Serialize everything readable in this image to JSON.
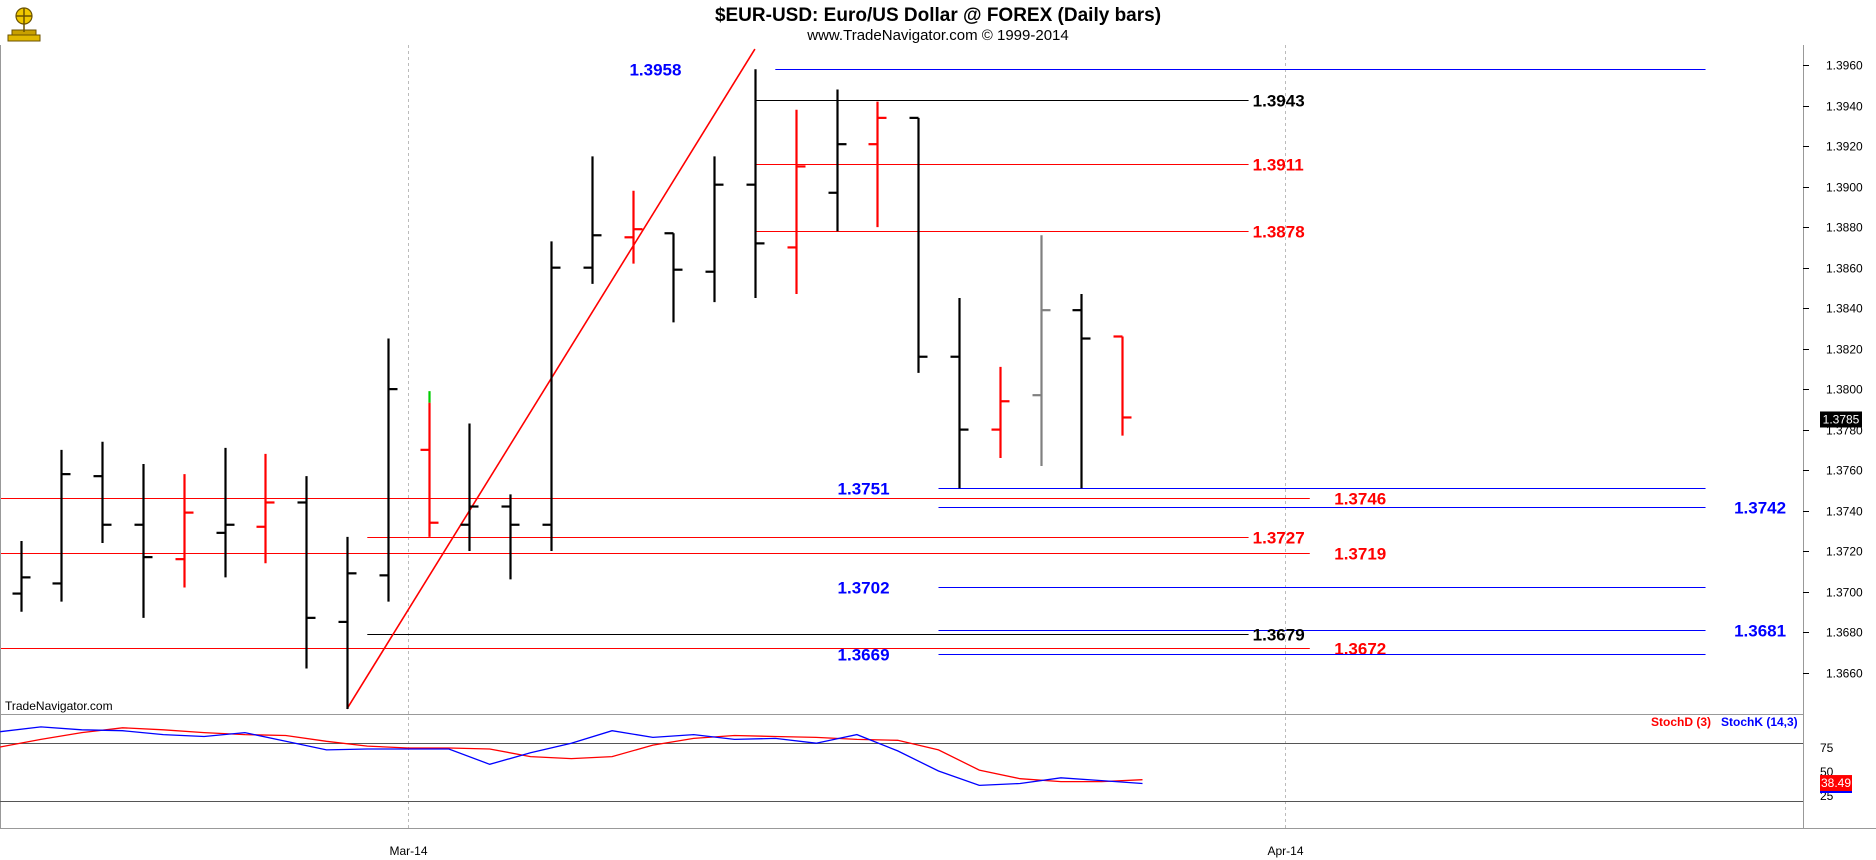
{
  "header": {
    "title": "$EUR-USD:  Euro/US Dollar @ FOREX  (Daily bars)",
    "subtitle": "www.TradeNavigator.com © 1999-2014",
    "watermark": "TradeNavigator.com"
  },
  "colors": {
    "up_bar": "#000000",
    "down_bar": "#ff0000",
    "neutral_bar": "#808080",
    "stoch_k": "#0000ff",
    "stoch_d": "#ff0000",
    "level_blue": "#0000ff",
    "level_red": "#ff0000",
    "level_black": "#000000",
    "price_tag_bg": "#000000",
    "stoch_tag_bg": "#ff0000"
  },
  "chart_data": [
    {
      "type": "ohlc",
      "title": "$EUR-USD:  Euro/US Dollar @ FOREX  (Daily bars)",
      "ylim": [
        1.364,
        1.397
      ],
      "y_ticks": [
        "1.3660",
        "1.3680",
        "1.3700",
        "1.3720",
        "1.3740",
        "1.3760",
        "1.3780",
        "1.3800",
        "1.3820",
        "1.3840",
        "1.3860",
        "1.3880",
        "1.3900",
        "1.3920",
        "1.3940",
        "1.3960"
      ],
      "x_ticks": [
        {
          "label": "Mar-14",
          "index": 9.5
        },
        {
          "label": "Apr-14",
          "index": 31
        }
      ],
      "last_price": "1.3785",
      "bars": [
        {
          "o": 1.3699,
          "h": 1.3725,
          "l": 1.369,
          "c": 1.3707,
          "color": "black"
        },
        {
          "o": 1.3704,
          "h": 1.377,
          "l": 1.3695,
          "c": 1.3758,
          "color": "black"
        },
        {
          "o": 1.3757,
          "h": 1.3774,
          "l": 1.3724,
          "c": 1.3733,
          "color": "black"
        },
        {
          "o": 1.3733,
          "h": 1.3763,
          "l": 1.3687,
          "c": 1.3717,
          "color": "black"
        },
        {
          "o": 1.3716,
          "h": 1.3758,
          "l": 1.3702,
          "c": 1.3739,
          "color": "red"
        },
        {
          "o": 1.3729,
          "h": 1.3771,
          "l": 1.3707,
          "c": 1.3733,
          "color": "black"
        },
        {
          "o": 1.3732,
          "h": 1.3768,
          "l": 1.3714,
          "c": 1.3744,
          "color": "red"
        },
        {
          "o": 1.3744,
          "h": 1.3757,
          "l": 1.3662,
          "c": 1.3687,
          "color": "black"
        },
        {
          "o": 1.3685,
          "h": 1.3727,
          "l": 1.3642,
          "c": 1.3709,
          "color": "black"
        },
        {
          "o": 1.3708,
          "h": 1.3825,
          "l": 1.3695,
          "c": 1.38,
          "color": "black"
        },
        {
          "o": 1.377,
          "h": 1.3799,
          "l": 1.3727,
          "c": 1.3734,
          "color": "red",
          "high_color": "#00cc00"
        },
        {
          "o": 1.3733,
          "h": 1.3783,
          "l": 1.372,
          "c": 1.3742,
          "color": "black"
        },
        {
          "o": 1.3742,
          "h": 1.3748,
          "l": 1.3706,
          "c": 1.3733,
          "color": "black"
        },
        {
          "o": 1.3733,
          "h": 1.3873,
          "l": 1.372,
          "c": 1.386,
          "color": "black"
        },
        {
          "o": 1.386,
          "h": 1.3915,
          "l": 1.3852,
          "c": 1.3876,
          "color": "black"
        },
        {
          "o": 1.3875,
          "h": 1.3898,
          "l": 1.3862,
          "c": 1.3879,
          "color": "red"
        },
        {
          "o": 1.3877,
          "h": 1.3877,
          "l": 1.3833,
          "c": 1.3859,
          "color": "black"
        },
        {
          "o": 1.3858,
          "h": 1.3915,
          "l": 1.3843,
          "c": 1.3901,
          "color": "black"
        },
        {
          "o": 1.3901,
          "h": 1.3958,
          "l": 1.3845,
          "c": 1.3872,
          "color": "black"
        },
        {
          "o": 1.387,
          "h": 1.3938,
          "l": 1.3847,
          "c": 1.391,
          "color": "red"
        },
        {
          "o": 1.3897,
          "h": 1.3948,
          "l": 1.3878,
          "c": 1.3921,
          "color": "black"
        },
        {
          "o": 1.3921,
          "h": 1.3942,
          "l": 1.388,
          "c": 1.3934,
          "color": "red"
        },
        {
          "o": 1.3934,
          "h": 1.3934,
          "l": 1.3808,
          "c": 1.3816,
          "color": "black"
        },
        {
          "o": 1.3816,
          "h": 1.3845,
          "l": 1.3751,
          "c": 1.378,
          "color": "black"
        },
        {
          "o": 1.378,
          "h": 1.3811,
          "l": 1.3766,
          "c": 1.3794,
          "color": "red"
        },
        {
          "o": 1.3797,
          "h": 1.3876,
          "l": 1.3762,
          "c": 1.3839,
          "color": "gray"
        },
        {
          "o": 1.3839,
          "h": 1.3847,
          "l": 1.3751,
          "c": 1.3825,
          "color": "black"
        },
        {
          "o": 1.3826,
          "h": 1.3826,
          "l": 1.3777,
          "c": 1.3786,
          "color": "red"
        }
      ],
      "levels": [
        {
          "value": 1.3958,
          "label": "1.3958",
          "color": "blue",
          "from": 18.5,
          "to": 41.3,
          "label_pos": "left",
          "label_at": 16.2
        },
        {
          "value": 1.3943,
          "label": "1.3943",
          "color": "black",
          "from": 18.0,
          "to": 30.1,
          "label_pos": "right",
          "label_at": 30.2
        },
        {
          "value": 1.3911,
          "label": "1.3911",
          "color": "red",
          "from": 18.0,
          "to": 30.1,
          "label_pos": "right",
          "label_at": 30.2
        },
        {
          "value": 1.3878,
          "label": "1.3878",
          "color": "red",
          "from": 18.0,
          "to": 30.1,
          "label_pos": "right",
          "label_at": 30.2
        },
        {
          "value": 1.3751,
          "label": "1.3751",
          "color": "blue",
          "from": 22.5,
          "to": 41.3,
          "label_pos": "left",
          "label_at": 21.3
        },
        {
          "value": 1.3746,
          "label": "1.3746",
          "color": "red",
          "from": -1.0,
          "to": 31.6,
          "label_pos": "right",
          "label_at": 32.2
        },
        {
          "value": 1.3742,
          "label": "1.3742",
          "color": "blue",
          "from": 22.5,
          "to": 41.3,
          "label_pos": "far",
          "label_at": 42.0
        },
        {
          "value": 1.3727,
          "label": "1.3727",
          "color": "red",
          "from": 8.5,
          "to": 30.1,
          "label_pos": "right",
          "label_at": 30.2
        },
        {
          "value": 1.3719,
          "label": "1.3719",
          "color": "red",
          "from": -1.0,
          "to": 31.6,
          "label_pos": "right",
          "label_at": 32.2
        },
        {
          "value": 1.3702,
          "label": "1.3702",
          "color": "blue",
          "from": 22.5,
          "to": 41.3,
          "label_pos": "left",
          "label_at": 21.3
        },
        {
          "value": 1.3681,
          "label": "1.3681",
          "color": "blue",
          "from": 22.5,
          "to": 41.3,
          "label_pos": "far",
          "label_at": 42.0
        },
        {
          "value": 1.3679,
          "label": "1.3679",
          "color": "black",
          "from": 8.5,
          "to": 30.1,
          "label_pos": "right",
          "label_at": 30.2
        },
        {
          "value": 1.3672,
          "label": "1.3672",
          "color": "red",
          "from": -1.0,
          "to": 31.6,
          "label_pos": "right",
          "label_at": 32.2
        },
        {
          "value": 1.3669,
          "label": "1.3669",
          "color": "blue",
          "from": 22.5,
          "to": 41.3,
          "label_pos": "left",
          "label_at": 21.3
        }
      ],
      "trendline": {
        "x1": 8.0,
        "y1": 1.3642,
        "x2": 18.0,
        "y2": 1.3968,
        "color": "red"
      }
    },
    {
      "type": "line",
      "ylim": [
        0,
        100
      ],
      "y_ticks": [
        "25",
        "50",
        "75"
      ],
      "reference_lines": [
        80,
        20
      ],
      "last_value": "38.49",
      "series": [
        {
          "name": "StochD (3)",
          "color": "red",
          "points": [
            [
              -0.5,
              76
            ],
            [
              0.5,
              84
            ],
            [
              1.5,
              91
            ],
            [
              2.5,
              96
            ],
            [
              3.5,
              94
            ],
            [
              4.5,
              91
            ],
            [
              5.5,
              89
            ],
            [
              6.5,
              88
            ],
            [
              7.5,
              82
            ],
            [
              8.5,
              77
            ],
            [
              9.5,
              75
            ],
            [
              10.5,
              75
            ],
            [
              11.5,
              74
            ],
            [
              12.5,
              66
            ],
            [
              13.5,
              64
            ],
            [
              14.5,
              66
            ],
            [
              15.5,
              78
            ],
            [
              16.5,
              85
            ],
            [
              17.5,
              88
            ],
            [
              18.5,
              87
            ],
            [
              19.5,
              86
            ],
            [
              20.5,
              84
            ],
            [
              21.5,
              83
            ],
            [
              22.5,
              73
            ],
            [
              23.5,
              52
            ],
            [
              24.5,
              43
            ],
            [
              25.5,
              40
            ],
            [
              26.5,
              40
            ],
            [
              27.5,
              42
            ]
          ]
        },
        {
          "name": "StochK (14,3)",
          "color": "blue",
          "points": [
            [
              -0.5,
              92
            ],
            [
              0.5,
              97
            ],
            [
              1.5,
              94
            ],
            [
              2.5,
              93
            ],
            [
              3.5,
              89
            ],
            [
              4.5,
              87
            ],
            [
              5.5,
              91
            ],
            [
              6.5,
              82
            ],
            [
              7.5,
              73
            ],
            [
              8.5,
              74
            ],
            [
              9.5,
              74
            ],
            [
              10.5,
              74
            ],
            [
              11.5,
              58
            ],
            [
              12.5,
              70
            ],
            [
              13.5,
              80
            ],
            [
              14.5,
              93
            ],
            [
              15.5,
              86
            ],
            [
              16.5,
              89
            ],
            [
              17.5,
              84
            ],
            [
              18.5,
              85
            ],
            [
              19.5,
              80
            ],
            [
              20.5,
              89
            ],
            [
              21.5,
              72
            ],
            [
              22.5,
              51
            ],
            [
              23.5,
              36
            ],
            [
              24.5,
              38
            ],
            [
              25.5,
              44
            ],
            [
              26.5,
              41
            ],
            [
              27.5,
              38
            ]
          ]
        }
      ]
    }
  ]
}
